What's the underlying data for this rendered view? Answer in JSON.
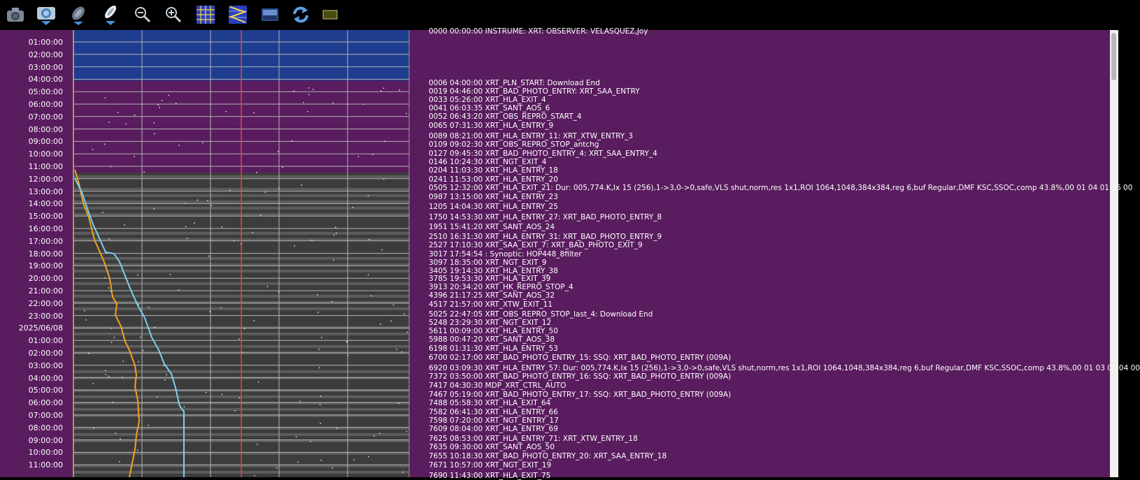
{
  "toolbar": {
    "buttons": [
      {
        "name": "camera-button",
        "icon": "camera-icon"
      },
      {
        "name": "capture-download-button",
        "icon": "camera-download-icon"
      },
      {
        "name": "satellite-button",
        "icon": "satellite-icon"
      },
      {
        "name": "capsule-download-button",
        "icon": "capsule-download-icon"
      },
      {
        "name": "zoom-out-button",
        "icon": "zoom-out-icon"
      },
      {
        "name": "zoom-in-button",
        "icon": "zoom-in-icon"
      },
      {
        "name": "grid-button",
        "icon": "grid-icon"
      },
      {
        "name": "zigzag-grid-button",
        "icon": "zigzag-grid-icon"
      },
      {
        "name": "image-button",
        "icon": "image-icon"
      },
      {
        "name": "refresh-button",
        "icon": "refresh-icon"
      },
      {
        "name": "color-box-button",
        "icon": "color-box-icon"
      }
    ]
  },
  "time_axis": {
    "ticks": [
      "01:00:00",
      "02:00:00",
      "03:00:00",
      "04:00:00",
      "05:00:00",
      "06:00:00",
      "07:00:00",
      "08:00:00",
      "09:00:00",
      "10:00:00",
      "11:00:00",
      "12:00:00",
      "13:00:00",
      "14:00:00",
      "15:00:00",
      "16:00:00",
      "17:00:00",
      "18:00:00",
      "19:00:00",
      "20:00:00",
      "21:00:00",
      "22:00:00",
      "23:00:00",
      "2025/06/08",
      "01:00:00",
      "02:00:00",
      "03:00:00",
      "04:00:00",
      "05:00:00",
      "06:00:00",
      "07:00:00",
      "08:00:00",
      "09:00:00",
      "10:00:00",
      "11:00:00"
    ]
  },
  "events": {
    "header": "0000 00:00:00 INSTRUME: XRT: OBSERVER: VELASQUEZ,Joy",
    "items": [
      "0006 04:00:00 XRT_PLN_START: Download End",
      "0019 04:46:00 XRT_BAD_PHOTO_ENTRY: XRT_SAA_ENTRY",
      "0033 05:26:00 XRT_HLA_EXIT_4",
      "0041 06:03:35 XRT_SANT_AOS_6",
      "0052 06:43:20 XRT_OBS_REPRO_START_4",
      "0065 07:31:30 XRT_HLA_ENTRY_9",
      "0089 08:21:00 XRT_HLA_ENTRY_11: XRT_XTW_ENTRY_3",
      "0109 09:02:30 XRT_OBS_REPRO_STOP_antchg",
      "0127 09:45:30 XRT_BAD_PHOTO_ENTRY_4: XRT_SAA_ENTRY_4",
      "0146 10:24:30 XRT_NGT_EXIT_4",
      "0204 11:03:30 XRT_HLA_ENTRY_18",
      "0241 11:53:00 XRT_HLA_ENTRY_20",
      "0505 12:32:00 XRT_HLA_EXIT_21: Dur: 005,774.K,Ix 15 (256),1->3,0->0,safe,VLS shut,norm,res 1x1,ROI 1064,1048,384x384,reg 6,buf Regular,DMF KSC,SSOC,comp 43.8%,00 01 04 01 06 00",
      "0987 13:15:00 XRT_HLA_ENTRY_23",
      "1205 14:04:30 XRT_HLA_ENTRY_25",
      "1750 14:53:30 XRT_HLA_ENTRY_27: XRT_BAD_PHOTO_ENTRY_8",
      "1951 15:41:20 XRT_SANT_AOS_24",
      "2510 16:31:30 XRT_HLA_ENTRY_31: XRT_BAD_PHOTO_ENTRY_9",
      "2527 17:10:30 XRT_SAA_EXIT_7: XRT_BAD_PHOTO_EXIT_9",
      "3017 17:54:54 : Synoptic: HOP448_8filter",
      "3097 18:35:00 XRT_NGT_EXIT_9",
      "3405 19:14:30 XRT_HLA_ENTRY_38",
      "3785 19:53:30 XRT_HLA_EXIT_39",
      "3913 20:34:20 XRT_HK_REPRO_STOP_4",
      "4396 21:17:25 XRT_SANT_AOS_32",
      "4517 21:57:00 XRT_XTW_EXIT_11",
      "5025 22:47:05 XRT_OBS_REPRO_STOP_last_4: Download End",
      "5248 23:29:30 XRT_NGT_EXIT_12",
      "5611 00:09:00 XRT_HLA_ENTRY_50",
      "5988 00:47:20 XRT_SANT_AOS_38",
      "6198 01:31:30 XRT_HLA_ENTRY_53",
      "6700 02:17:00 XRT_BAD_PHOTO_ENTRY_15: SSQ: XRT_BAD_PHOTO_ENTRY (009A)",
      "6920 03:09:30 XRT_HLA_ENTRY_57: Dur: 005,774.K,Ix 15 (256),1->3,0->0,safe,VLS shut,norm,res 1x1,ROI 1064,1048,384x384,reg 6,buf Regular,DMF KSC,SSOC,comp 43.8%,00 01 03 01 04 00",
      "7372 03:50:00 XRT_BAD_PHOTO_ENTRY_16: SSQ: XRT_BAD_PHOTO_ENTRY (009A)",
      "7417 04:30:30 MDP_XRT_CTRL_AUTO",
      "7467 05:19:00 XRT_BAD_PHOTO_ENTRY_17: SSQ: XRT_BAD_PHOTO_ENTRY (009A)",
      "7488 05:58:30 XRT_HLA_EXIT_64",
      "7582 06:41:30 XRT_HLA_ENTRY_66",
      "7598 07:20:00 XRT_NGT_ENTRY_17",
      "7609 08:04:00 XRT_HLA_ENTRY_69",
      "7625 08:53:00 XRT_HLA_ENTRY_71: XRT_XTW_ENTRY_18",
      "7635 09:30:00 XRT_SANT_AOS_50",
      "7655 10:18:30 XRT_BAD_PHOTO_ENTRY_20: XRT_SAA_ENTRY_18",
      "7671 10:57:00 XRT_NGT_EXIT_19",
      "7690 11:43:00 XRT_HLA_EXIT_75"
    ]
  },
  "colors": {
    "background": "#591c5e",
    "blue_band": "#1e3d8f",
    "dark_band": "#3c3c3c",
    "grid_line": "#b4b4b4",
    "marker_line": "#e84545",
    "orange_line": "#f5a020",
    "cyan_line": "#7ccfee"
  }
}
